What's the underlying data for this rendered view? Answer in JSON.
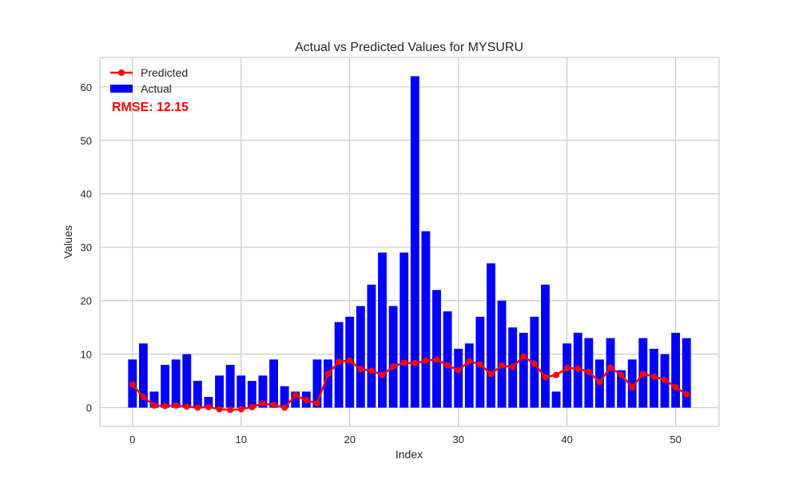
{
  "chart_data": {
    "type": "bar",
    "title": "Actual vs Predicted Values for MYSURU",
    "xlabel": "Index",
    "ylabel": "Values",
    "xlim": [
      -3,
      54
    ],
    "ylim": [
      -3.5,
      65.5
    ],
    "xticks": [
      0,
      10,
      20,
      30,
      40,
      50
    ],
    "yticks": [
      0,
      10,
      20,
      30,
      40,
      50,
      60
    ],
    "grid": true,
    "legend_position": "top-left",
    "annotation": "RMSE: 12.15",
    "x": [
      0,
      1,
      2,
      3,
      4,
      5,
      6,
      7,
      8,
      9,
      10,
      11,
      12,
      13,
      14,
      15,
      16,
      17,
      18,
      19,
      20,
      21,
      22,
      23,
      24,
      25,
      26,
      27,
      28,
      29,
      30,
      31,
      32,
      33,
      34,
      35,
      36,
      37,
      38,
      39,
      40,
      41,
      42,
      43,
      44,
      45,
      46,
      47,
      48,
      49,
      50,
      51
    ],
    "series": [
      {
        "name": "Predicted",
        "kind": "line",
        "color": "#ff0000",
        "values": [
          4.3,
          2.0,
          0.4,
          0.3,
          0.4,
          0.2,
          0.0,
          0.1,
          -0.3,
          -0.4,
          -0.3,
          0.1,
          0.8,
          0.5,
          0.0,
          2.3,
          1.4,
          0.8,
          6.3,
          8.6,
          8.8,
          7.2,
          6.9,
          6.1,
          7.7,
          8.4,
          8.3,
          8.8,
          9.0,
          7.9,
          7.0,
          8.7,
          8.1,
          6.3,
          7.9,
          7.6,
          9.6,
          8.2,
          5.7,
          6.1,
          7.4,
          7.3,
          6.7,
          4.8,
          7.5,
          6.1,
          3.8,
          6.3,
          5.8,
          5.2,
          3.8,
          2.5
        ]
      },
      {
        "name": "Actual",
        "kind": "bar",
        "color": "#0000ff",
        "values": [
          9,
          12,
          3,
          8,
          9,
          10,
          5,
          2,
          6,
          8,
          6,
          5,
          6,
          9,
          4,
          3,
          3,
          9,
          9,
          16,
          17,
          19,
          23,
          29,
          19,
          29,
          62,
          33,
          22,
          18,
          11,
          12,
          17,
          27,
          20,
          15,
          14,
          17,
          23,
          3,
          12,
          14,
          13,
          9,
          13,
          7,
          9,
          13,
          11,
          10,
          14,
          13
        ]
      }
    ],
    "colors": {
      "grid": "#cccccc",
      "frame": "#cccccc",
      "text": "#262626",
      "annotation": "#ff0000"
    }
  }
}
